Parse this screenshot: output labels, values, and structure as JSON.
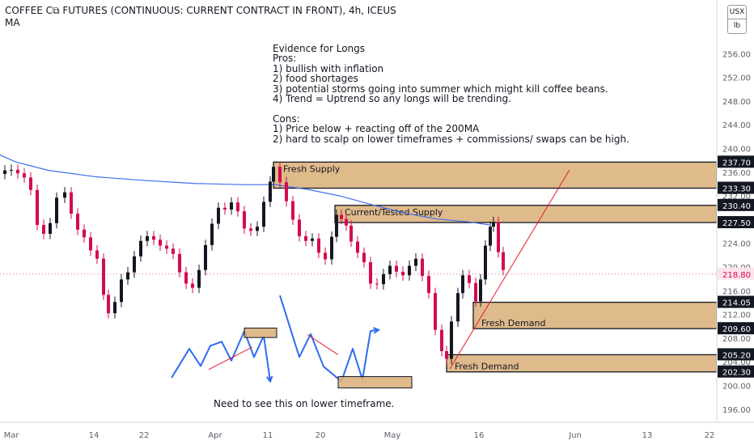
{
  "header": {
    "title": "COFFEE C⧉ FUTURES (CONTINUOUS: CURRENT CONTRACT IN FRONT), 4h, ICEUS",
    "indicator": "MA",
    "currency": "USX",
    "unit": "lb"
  },
  "notes": {
    "text": "Evidence for Longs\nPros:\n1) bullish with inflation\n2) food shortages\n3) potential storms going into summer which might kill coffee beans.\n4) Trend = Uptrend so any longs will be trending.\n\nCons:\n1) Price below + reacting off of the 200MA\n2) hard to scalp on lower timeframes + commissions/ swaps can be high."
  },
  "caption": "Need to see this on lower timeframe.",
  "colors": {
    "zone": "#d9ae77",
    "up_candle": "#131722",
    "down_candle": "#d60a4e",
    "ma": "#3d6ef0",
    "last_price": "#d60a4e",
    "sketch": "#2f6bf0",
    "trendline": "#e8192c"
  },
  "chart_data": {
    "type": "candlestick",
    "y_axis": {
      "range": [
        193.5,
        259.5
      ],
      "ticks": [
        196.0,
        200.0,
        204.0,
        208.0,
        212.0,
        216.0,
        220.0,
        224.0,
        228.0,
        232.0,
        236.0,
        240.0,
        244.0,
        248.0,
        252.0,
        256.0
      ],
      "tick_labels": [
        "196.00",
        "200.00",
        "204.00",
        "208.00",
        "212.00",
        "216.00",
        "220.00",
        "224.00",
        "228.00",
        "232.00",
        "236.00",
        "240.00",
        "244.00",
        "248.00",
        "252.00",
        "256.00"
      ],
      "price_labels": [
        "237.70",
        "233.30",
        "230.40",
        "227.50",
        "214.05",
        "209.60",
        "205.20",
        "202.30"
      ],
      "last_price": "218.80"
    },
    "x_axis": {
      "labels": [
        "Mar",
        "14",
        "22",
        "Apr",
        "11",
        "20",
        "May",
        "16",
        "Jun",
        "13",
        "22"
      ]
    },
    "zones": [
      {
        "label": "Fresh Supply",
        "top": 237.7,
        "bottom": 233.3,
        "start_date": "Apr 11"
      },
      {
        "label": "Current/Tested Supply",
        "top": 230.4,
        "bottom": 227.5,
        "start_date": "Apr 20"
      },
      {
        "label": "Fresh Demand",
        "top": 214.05,
        "bottom": 209.6,
        "start_date": "May 16"
      },
      {
        "label": "Fresh Demand",
        "top": 205.2,
        "bottom": 202.3,
        "start_date": "May 11"
      }
    ],
    "series": [
      {
        "name": "MA",
        "points": [
          [
            0,
            238.9
          ],
          [
            20,
            237.7
          ],
          [
            60,
            236.3
          ],
          [
            120,
            235.2
          ],
          [
            180,
            234.6
          ],
          [
            240,
            234.1
          ],
          [
            300,
            233.9
          ],
          [
            340,
            233.9
          ],
          [
            380,
            233.1
          ],
          [
            420,
            232.0
          ],
          [
            460,
            230.5
          ],
          [
            500,
            229.1
          ],
          [
            540,
            228.1
          ],
          [
            580,
            227.6
          ],
          [
            605,
            227.1
          ]
        ]
      },
      {
        "name": "Close",
        "points": [
          [
            6,
            236.3
          ],
          [
            14,
            236.4
          ],
          [
            22,
            235.8
          ],
          [
            30,
            235.1
          ],
          [
            38,
            233.0
          ],
          [
            46,
            227.1
          ],
          [
            54,
            225.6
          ],
          [
            62,
            227.4
          ],
          [
            70,
            231.7
          ],
          [
            80,
            232.6
          ],
          [
            88,
            229.0
          ],
          [
            96,
            226.3
          ],
          [
            104,
            225.0
          ],
          [
            112,
            222.8
          ],
          [
            120,
            221.4
          ],
          [
            128,
            215.3
          ],
          [
            134,
            212.2
          ],
          [
            142,
            214.1
          ],
          [
            150,
            217.9
          ],
          [
            158,
            219.1
          ],
          [
            166,
            221.8
          ],
          [
            174,
            224.4
          ],
          [
            182,
            225.2
          ],
          [
            190,
            224.6
          ],
          [
            198,
            223.6
          ],
          [
            206,
            223.1
          ],
          [
            214,
            222.2
          ],
          [
            222,
            219.1
          ],
          [
            230,
            217.2
          ],
          [
            238,
            216.5
          ],
          [
            246,
            219.5
          ],
          [
            254,
            223.7
          ],
          [
            262,
            227.3
          ],
          [
            270,
            230.0
          ],
          [
            278,
            229.7
          ],
          [
            286,
            230.9
          ],
          [
            294,
            229.4
          ],
          [
            302,
            226.5
          ],
          [
            310,
            226.1
          ],
          [
            318,
            226.8
          ],
          [
            326,
            231.0
          ],
          [
            334,
            234.4
          ],
          [
            338,
            236.9
          ],
          [
            346,
            234.3
          ],
          [
            354,
            231.1
          ],
          [
            362,
            228.0
          ],
          [
            370,
            225.2
          ],
          [
            378,
            224.4
          ],
          [
            386,
            224.8
          ],
          [
            394,
            222.4
          ],
          [
            402,
            221.3
          ],
          [
            410,
            225.1
          ],
          [
            416,
            228.8
          ],
          [
            422,
            228.1
          ],
          [
            428,
            227.0
          ],
          [
            434,
            224.3
          ],
          [
            442,
            222.4
          ],
          [
            450,
            220.8
          ],
          [
            458,
            217.2
          ],
          [
            466,
            217.1
          ],
          [
            474,
            218.8
          ],
          [
            482,
            220.2
          ],
          [
            490,
            219.2
          ],
          [
            498,
            218.6
          ],
          [
            506,
            220.2
          ],
          [
            514,
            221.4
          ],
          [
            522,
            218.5
          ],
          [
            530,
            215.6
          ],
          [
            538,
            209.4
          ],
          [
            546,
            205.8
          ],
          [
            552,
            204.5
          ],
          [
            558,
            210.8
          ],
          [
            566,
            215.6
          ],
          [
            572,
            218.6
          ],
          [
            580,
            217.3
          ],
          [
            588,
            214.2
          ],
          [
            594,
            217.9
          ],
          [
            600,
            223.6
          ],
          [
            606,
            226.8
          ],
          [
            610,
            227.6
          ],
          [
            616,
            222.5
          ],
          [
            622,
            219.5
          ]
        ]
      }
    ],
    "annotations": {
      "sketch_left": [
        [
          212,
          201.3
        ],
        [
          234,
          206.2
        ],
        [
          248,
          203.3
        ],
        [
          260,
          206.7
        ],
        [
          274,
          207.4
        ],
        [
          286,
          204.2
        ],
        [
          302,
          209.2
        ],
        [
          314,
          204.8
        ],
        [
          326,
          208.4
        ],
        [
          334,
          200.7
        ]
      ],
      "sketch_right": [
        [
          346,
          215.2
        ],
        [
          370,
          204.8
        ],
        [
          384,
          208.7
        ],
        [
          400,
          203.2
        ],
        [
          422,
          200.7
        ],
        [
          436,
          206.2
        ],
        [
          448,
          201.0
        ],
        [
          458,
          209.2
        ],
        [
          468,
          209.4
        ]
      ],
      "trend_lines": [
        [
          [
            258,
            202.7
          ],
          [
            312,
            206.5
          ]
        ],
        [
          [
            380,
            208.6
          ],
          [
            418,
            205.2
          ]
        ],
        [
          [
            556,
            202.8
          ],
          [
            704,
            236.4
          ]
        ]
      ],
      "mini_boxes": [
        {
          "top": 209.7,
          "bottom": 208.1
        },
        {
          "top": 201.5,
          "bottom": 199.6
        }
      ]
    }
  }
}
